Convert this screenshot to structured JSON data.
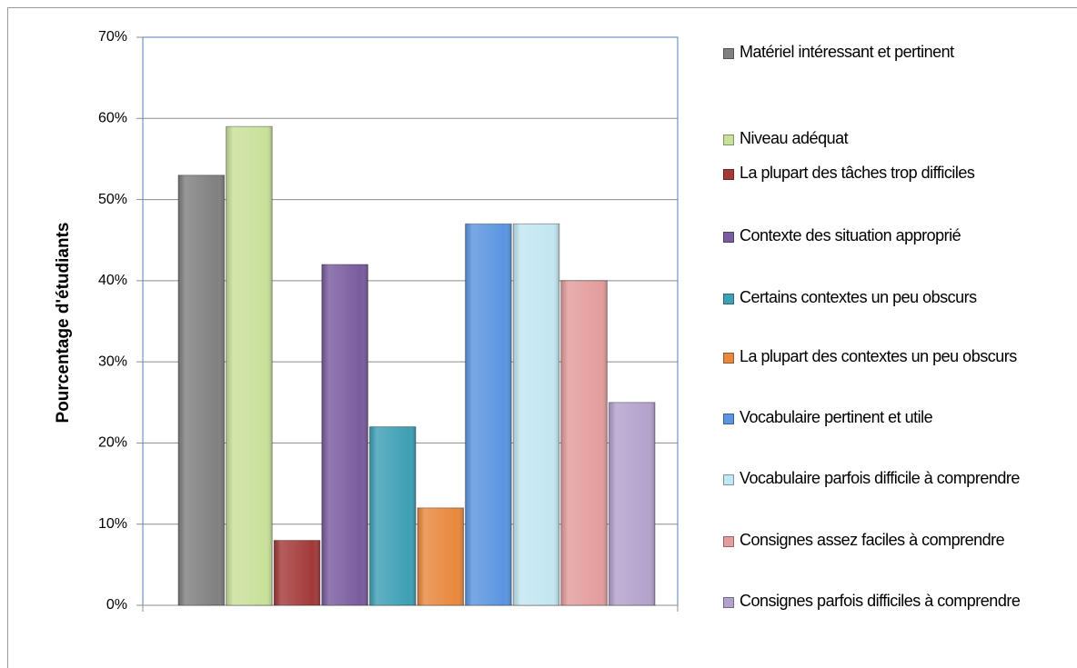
{
  "chart_data": {
    "type": "bar",
    "ylabel": "Pourcentage d'étudiants",
    "categories": [
      null
    ],
    "ylim": [
      0,
      70
    ],
    "yticks": [
      {
        "value": 0,
        "label": "0%"
      },
      {
        "value": 10,
        "label": "10%"
      },
      {
        "value": 20,
        "label": "20%"
      },
      {
        "value": 30,
        "label": "30%"
      },
      {
        "value": 40,
        "label": "40%"
      },
      {
        "value": 50,
        "label": "50%"
      },
      {
        "value": 60,
        "label": "60%"
      },
      {
        "value": 70,
        "label": "70%"
      }
    ],
    "grid": true,
    "legend": "right",
    "series": [
      {
        "name": "Matériel intéressant et pertinent",
        "color": "#808080",
        "values": [
          53
        ]
      },
      {
        "name": "Niveau adéquat",
        "color": "#c9e09a",
        "values": [
          59
        ]
      },
      {
        "name": "La plupart des tâches trop difficiles",
        "color": "#a33a3a",
        "values": [
          8
        ]
      },
      {
        "name": "Contexte des situation approprié",
        "color": "#7a5c9e",
        "values": [
          42
        ]
      },
      {
        "name": "Certains contextes un peu obscurs",
        "color": "#3ea0b5",
        "values": [
          22
        ]
      },
      {
        "name": "La plupart des contextes un peu obscurs",
        "color": "#e8883e",
        "values": [
          12
        ]
      },
      {
        "name": "Vocabulaire pertinent et utile",
        "color": "#5b95e0",
        "values": [
          47
        ]
      },
      {
        "name": "Vocabulaire parfois difficile à comprendre",
        "color": "#c2e6f2",
        "values": [
          47
        ]
      },
      {
        "name": "Consignes assez faciles à comprendre",
        "color": "#e39d9d",
        "values": [
          40
        ]
      },
      {
        "name": "Consignes parfois difficiles à comprendre",
        "color": "#b3a2cc",
        "values": [
          25
        ]
      }
    ]
  }
}
